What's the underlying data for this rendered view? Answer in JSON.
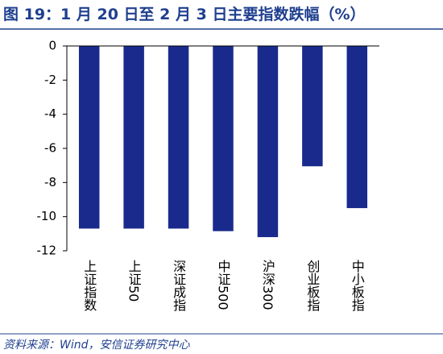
{
  "chart_data": {
    "type": "bar",
    "title": "图 19：1 月 20 日至 2 月 3 日主要指数跌幅（%）",
    "source": "资料来源：Wind，安信证券研究中心",
    "categories": [
      "上证指数",
      "上证50",
      "深证成指",
      "中证500",
      "沪深300",
      "创业板指",
      "中小板指"
    ],
    "values": [
      -10.7,
      -10.7,
      -10.7,
      -10.85,
      -11.2,
      -7.05,
      -9.5
    ],
    "color": "#1a2a8c",
    "ylim": [
      -12,
      0
    ],
    "yticks": [
      0,
      -2,
      -4,
      -6,
      -8,
      -10,
      -12
    ],
    "grid": false
  }
}
